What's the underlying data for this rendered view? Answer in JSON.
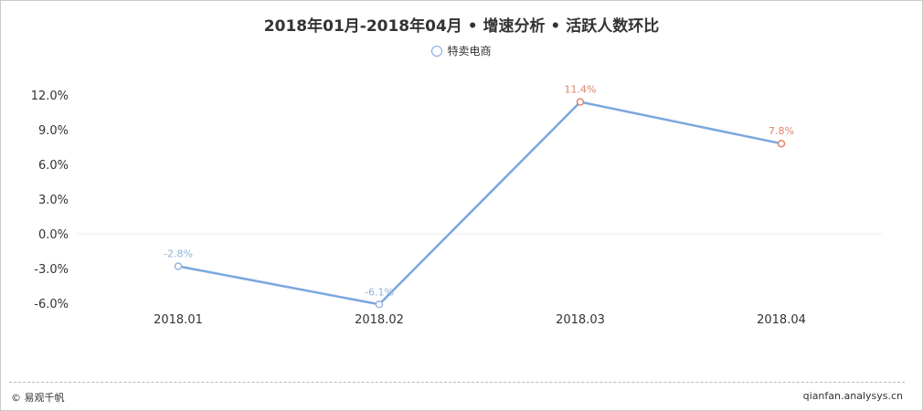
{
  "chart_data": {
    "type": "line",
    "title": "2018年01月-2018年04月 • 增速分析 • 活跃人数环比",
    "categories": [
      "2018.01",
      "2018.02",
      "2018.03",
      "2018.04"
    ],
    "series": [
      {
        "name": "特卖电商",
        "values": [
          -2.8,
          -6.1,
          11.4,
          7.8
        ],
        "labels": [
          "-2.8%",
          "-6.1%",
          "11.4%",
          "7.8%"
        ]
      }
    ],
    "ylim": [
      -6.0,
      12.0
    ],
    "yticks": [
      12.0,
      9.0,
      6.0,
      3.0,
      0.0,
      -3.0,
      -6.0
    ],
    "ytick_labels": [
      "12.0%",
      "9.0%",
      "6.0%",
      "3.0%",
      "0.0%",
      "-3.0%",
      "-6.0%"
    ],
    "grid": false,
    "legend_position": "top-center",
    "colors": {
      "line": "#7aa7de",
      "positive_marker": "#e0826e",
      "negative_marker": "#9cb6d8",
      "positive_label": "#e0826e",
      "negative_label": "#8fb3dc",
      "zero_line": "#eeeeee"
    }
  },
  "footer": {
    "left": "© 易观千帆",
    "right": "qianfan.analysys.cn"
  }
}
